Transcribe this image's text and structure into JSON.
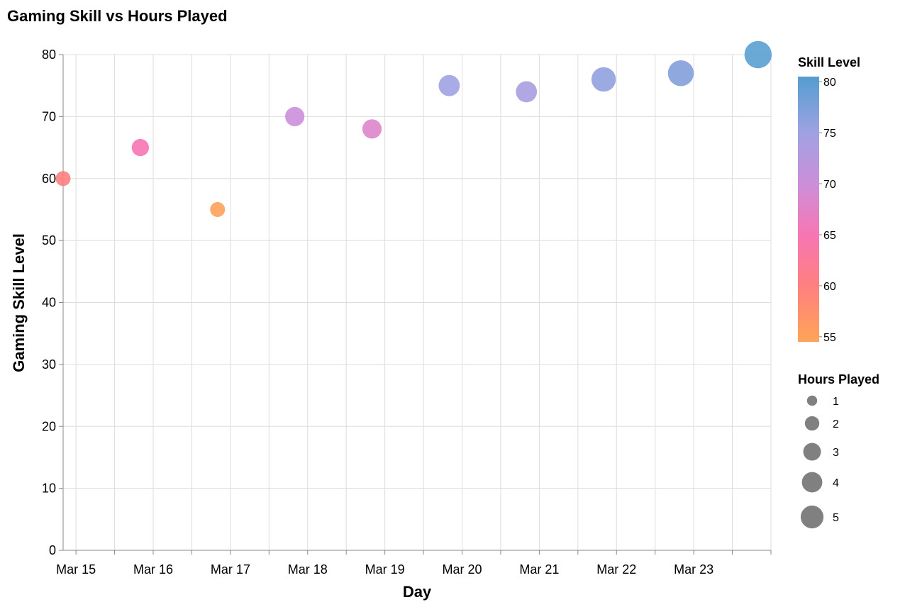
{
  "chart_data": {
    "type": "scatter",
    "title": "Gaming Skill vs Hours Played",
    "xlabel": "Day",
    "ylabel": "Gaming Skill Level",
    "x_tick_labels": [
      "Mar 15",
      "Mar 16",
      "Mar 17",
      "Mar 18",
      "Mar 19",
      "Mar 20",
      "Mar 21",
      "Mar 22",
      "Mar 23"
    ],
    "y_ticks": [
      0,
      10,
      20,
      30,
      40,
      50,
      60,
      70,
      80
    ],
    "ylim": [
      0,
      80
    ],
    "xlim": [
      "2023-03-14T20:00",
      "2023-03-24T00:00"
    ],
    "grid": true,
    "points": [
      {
        "day": "2023-03-14T20:00",
        "skill": 60,
        "hours": 1.5
      },
      {
        "day": "2023-03-15T20:00",
        "skill": 65,
        "hours": 2.0
      },
      {
        "day": "2023-03-16T20:00",
        "skill": 55,
        "hours": 1.5
      },
      {
        "day": "2023-03-17T20:00",
        "skill": 70,
        "hours": 2.5
      },
      {
        "day": "2023-03-18T20:00",
        "skill": 68,
        "hours": 2.5
      },
      {
        "day": "2023-03-19T20:00",
        "skill": 75,
        "hours": 3.0
      },
      {
        "day": "2023-03-20T20:00",
        "skill": 74,
        "hours": 3.0
      },
      {
        "day": "2023-03-21T20:00",
        "skill": 76,
        "hours": 4.0
      },
      {
        "day": "2023-03-22T20:00",
        "skill": 77,
        "hours": 4.5
      },
      {
        "day": "2023-03-23T20:00",
        "skill": 80,
        "hours": 5.0
      }
    ],
    "color_legend": {
      "title": "Skill Level",
      "ticks": [
        80,
        75,
        70,
        65,
        60,
        55
      ],
      "domain": [
        54.5,
        80.5
      ],
      "stops": [
        {
          "value": 55,
          "color": "#ffa15a"
        },
        {
          "value": 60,
          "color": "#ff7f80"
        },
        {
          "value": 65,
          "color": "#f776b4"
        },
        {
          "value": 70,
          "color": "#cc8fda"
        },
        {
          "value": 75,
          "color": "#9fa2e2"
        },
        {
          "value": 80,
          "color": "#5a9ed1"
        }
      ]
    },
    "size_legend": {
      "title": "Hours Played",
      "values": [
        1,
        2,
        3,
        4,
        5
      ],
      "labels": [
        "1",
        "2",
        "3",
        "4",
        "5"
      ],
      "symbol_color": "#808080"
    }
  }
}
